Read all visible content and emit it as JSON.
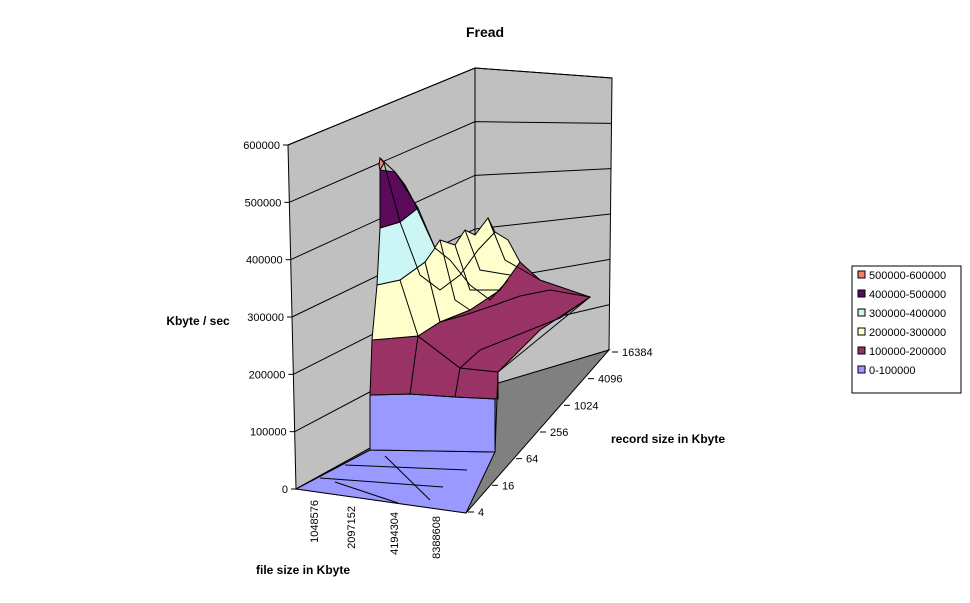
{
  "chart_data": {
    "type": "surface-3d",
    "title": "Fread",
    "zlabel": "Kbyte / sec",
    "xlabel": "file size in Kbyte",
    "ylabel": "record size in Kbyte",
    "z_ticks": [
      "0",
      "100000",
      "200000",
      "300000",
      "400000",
      "500000",
      "600000"
    ],
    "zlim": [
      0,
      600000
    ],
    "file_size_ticks": [
      "1048576",
      "2097152",
      "4194304",
      "8388608"
    ],
    "record_size_ticks": [
      "4",
      "16",
      "64",
      "256",
      "1024",
      "4096",
      "16384"
    ],
    "grid": true,
    "legend_position": "right",
    "legend": [
      {
        "label": "500000-600000",
        "color": "#f08070"
      },
      {
        "label": "400000-500000",
        "color": "#5c0a5c"
      },
      {
        "label": "300000-400000",
        "color": "#ccf5f5"
      },
      {
        "label": "200000-300000",
        "color": "#ffffcc"
      },
      {
        "label": "100000-200000",
        "color": "#993366"
      },
      {
        "label": "0-100000",
        "color": "#9999ff"
      }
    ],
    "ridge_values_by_record_size": [
      {
        "record_size": "4",
        "value": 580000
      },
      {
        "record_size": "8",
        "value": 520000
      },
      {
        "record_size": "16",
        "value": 460000
      },
      {
        "record_size": "32",
        "value": 340000
      },
      {
        "record_size": "64",
        "value": 325000
      },
      {
        "record_size": "128",
        "value": 330000
      },
      {
        "record_size": "256",
        "value": 310000
      },
      {
        "record_size": "512",
        "value": 330000
      },
      {
        "record_size": "1024",
        "value": 310000
      },
      {
        "record_size": "2048",
        "value": 300000
      },
      {
        "record_size": "4096",
        "value": 230000
      },
      {
        "record_size": "8192",
        "value": 215000
      },
      {
        "record_size": "16384",
        "value": 210000
      }
    ],
    "large_file_sizes_value_range": [
      0,
      100000
    ]
  }
}
